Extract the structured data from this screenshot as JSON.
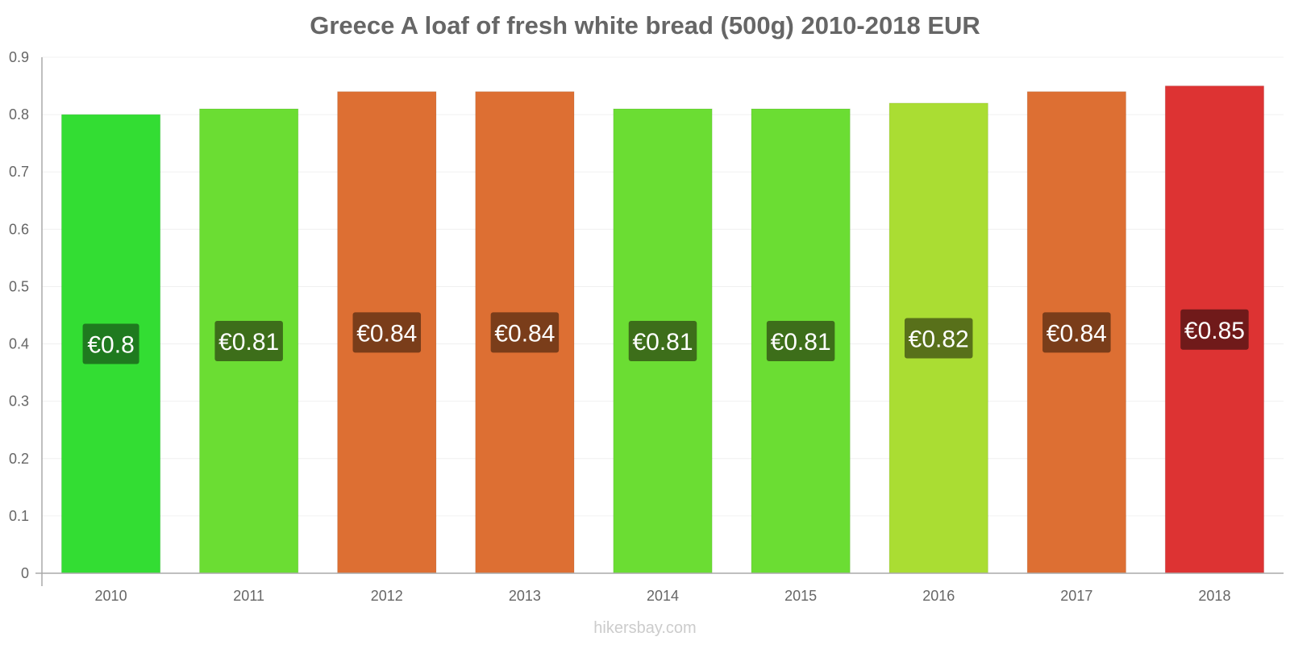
{
  "chart_data": {
    "type": "bar",
    "title": "Greece A loaf of fresh white bread (500g) 2010-2018 EUR",
    "categories": [
      "2010",
      "2011",
      "2012",
      "2013",
      "2014",
      "2015",
      "2016",
      "2017",
      "2018"
    ],
    "values": [
      0.8,
      0.81,
      0.84,
      0.84,
      0.81,
      0.81,
      0.82,
      0.84,
      0.85
    ],
    "data_labels": [
      "€0.8",
      "€0.81",
      "€0.84",
      "€0.84",
      "€0.81",
      "€0.81",
      "€0.82",
      "€0.84",
      "€0.85"
    ],
    "bar_colors": [
      "#33dd33",
      "#6bdd33",
      "#dd6f33",
      "#dd6f33",
      "#6bdd33",
      "#6bdd33",
      "#aadd33",
      "#dd6f33",
      "#dd3333"
    ],
    "label_bg_colors": [
      "#1f7a1f",
      "#3d6e1a",
      "#7a3d1a",
      "#7a3d1a",
      "#3d6e1a",
      "#3d6e1a",
      "#58701a",
      "#7a3d1a",
      "#701a1a"
    ],
    "y_ticks": [
      "0",
      "0.1",
      "0.2",
      "0.3",
      "0.4",
      "0.5",
      "0.6",
      "0.7",
      "0.8",
      "0.9"
    ],
    "ylim": [
      0,
      0.9
    ],
    "xlabel": "",
    "ylabel": "",
    "grid": true,
    "legend": "none"
  },
  "watermark": "hikersbay.com"
}
